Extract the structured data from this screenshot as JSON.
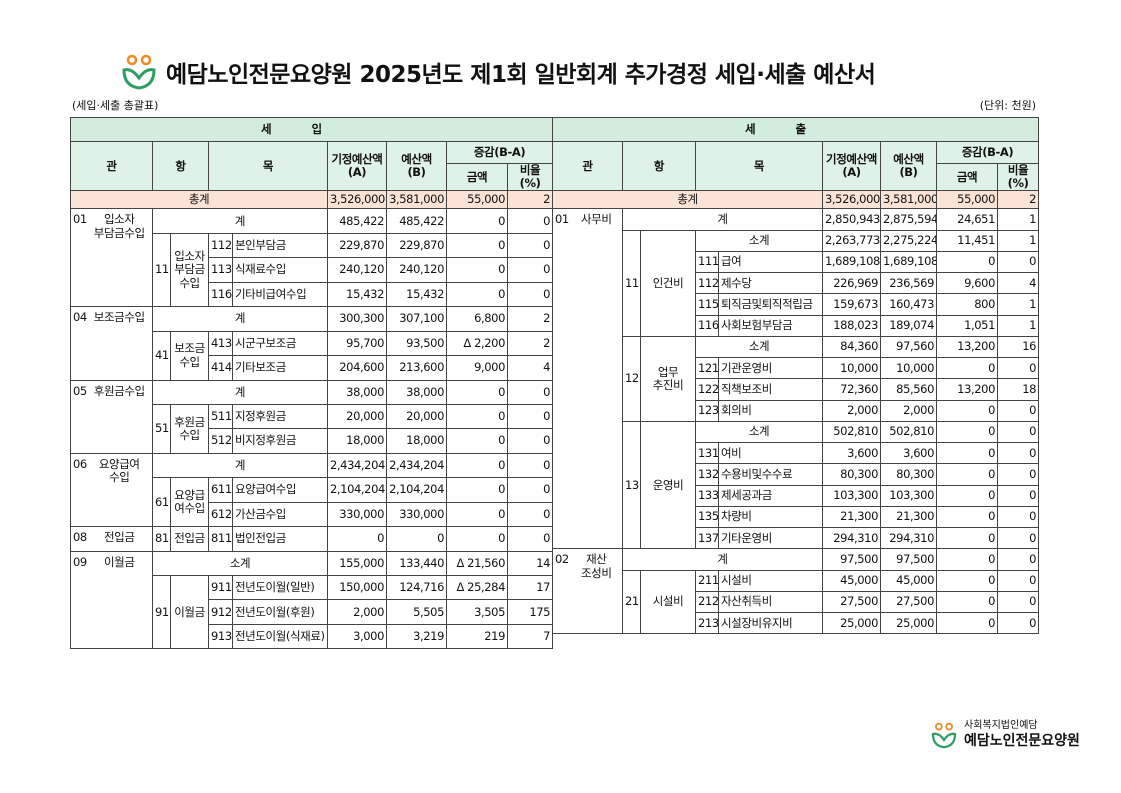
{
  "header": {
    "title": "예담노인전문요양원 2025년도 제1회 일반회계 추가경정 세입·세출 예산서",
    "subtitle": "(세입·세출 총괄표)",
    "unit": "(단위: 천원)"
  },
  "columns": {
    "gwan": "관",
    "hang": "항",
    "mok": "목",
    "budget_a": "기정예산액\n(A)",
    "budget_b": "예산액\n(B)",
    "diff": "증감(B-A)",
    "amount": "금액",
    "rate": "비율(%)"
  },
  "income": {
    "title": "세입",
    "total": {
      "label": "총계",
      "values": [
        "3,526,000",
        "3,581,000",
        "55,000",
        "2"
      ]
    },
    "groups": [
      {
        "code": "01",
        "name": "입소자\n부담금수입",
        "total": {
          "label": "계",
          "values": [
            "485,422",
            "485,422",
            "0",
            "0"
          ]
        },
        "subs": [
          {
            "code": "11",
            "name": "입소자\n부담금\n수입",
            "items": [
              {
                "code": "112",
                "name": "본인부담금",
                "values": [
                  "229,870",
                  "229,870",
                  "0",
                  "0"
                ]
              },
              {
                "code": "113",
                "name": "식재료수입",
                "values": [
                  "240,120",
                  "240,120",
                  "0",
                  "0"
                ]
              },
              {
                "code": "116",
                "name": "기타비급여수입",
                "values": [
                  "15,432",
                  "15,432",
                  "0",
                  "0"
                ]
              }
            ]
          }
        ]
      },
      {
        "code": "04",
        "name": "보조금수입",
        "total": {
          "label": "계",
          "values": [
            "300,300",
            "307,100",
            "6,800",
            "2"
          ]
        },
        "subs": [
          {
            "code": "41",
            "name": "보조금\n수입",
            "items": [
              {
                "code": "413",
                "name": "시군구보조금",
                "values": [
                  "95,700",
                  "93,500",
                  "Δ 2,200",
                  "2"
                ]
              },
              {
                "code": "414",
                "name": "기타보조금",
                "values": [
                  "204,600",
                  "213,600",
                  "9,000",
                  "4"
                ]
              }
            ]
          }
        ]
      },
      {
        "code": "05",
        "name": "후원금수입",
        "total": {
          "label": "계",
          "values": [
            "38,000",
            "38,000",
            "0",
            "0"
          ]
        },
        "subs": [
          {
            "code": "51",
            "name": "후원금\n수입",
            "items": [
              {
                "code": "511",
                "name": "지정후원금",
                "values": [
                  "20,000",
                  "20,000",
                  "0",
                  "0"
                ]
              },
              {
                "code": "512",
                "name": "비지정후원금",
                "values": [
                  "18,000",
                  "18,000",
                  "0",
                  "0"
                ]
              }
            ]
          }
        ]
      },
      {
        "code": "06",
        "name": "요양급여\n수입",
        "total": {
          "label": "계",
          "values": [
            "2,434,204",
            "2,434,204",
            "0",
            "0"
          ]
        },
        "subs": [
          {
            "code": "61",
            "name": "요양급\n여수입",
            "items": [
              {
                "code": "611",
                "name": "요양급여수입",
                "values": [
                  "2,104,204",
                  "2,104,204",
                  "0",
                  "0"
                ]
              },
              {
                "code": "612",
                "name": "가산금수입",
                "values": [
                  "330,000",
                  "330,000",
                  "0",
                  "0"
                ]
              }
            ]
          }
        ]
      },
      {
        "code": "08",
        "name": "전입금",
        "subs": [
          {
            "code": "81",
            "name": "전입금",
            "items": [
              {
                "code": "811",
                "name": "법인전입금",
                "values": [
                  "0",
                  "0",
                  "0",
                  "0"
                ]
              }
            ]
          }
        ]
      },
      {
        "code": "09",
        "name": "이월금",
        "total": {
          "label": "소계",
          "values": [
            "155,000",
            "133,440",
            "Δ 21,560",
            "14"
          ]
        },
        "subs": [
          {
            "code": "91",
            "name": "이월금",
            "items": [
              {
                "code": "911",
                "name": "전년도이월(일반)",
                "values": [
                  "150,000",
                  "124,716",
                  "Δ 25,284",
                  "17"
                ]
              },
              {
                "code": "912",
                "name": "전년도이월(후원)",
                "values": [
                  "2,000",
                  "5,505",
                  "3,505",
                  "175"
                ]
              },
              {
                "code": "913",
                "name": "전년도이월(식재료)",
                "values": [
                  "3,000",
                  "3,219",
                  "219",
                  "7"
                ]
              }
            ]
          }
        ]
      }
    ]
  },
  "expense": {
    "title": "세출",
    "total": {
      "label": "총계",
      "values": [
        "3,526,000",
        "3,581,000",
        "55,000",
        "2"
      ]
    },
    "groups": [
      {
        "code": "01",
        "name": "사무비",
        "total": {
          "label": "계",
          "values": [
            "2,850,943",
            "2,875,594",
            "24,651",
            "1"
          ]
        },
        "subs": [
          {
            "code": "11",
            "name": "인건비",
            "total": {
              "label": "소계",
              "values": [
                "2,263,773",
                "2,275,224",
                "11,451",
                "1"
              ]
            },
            "items": [
              {
                "code": "111",
                "name": "급여",
                "values": [
                  "1,689,108",
                  "1,689,108",
                  "0",
                  "0"
                ]
              },
              {
                "code": "112",
                "name": "제수당",
                "values": [
                  "226,969",
                  "236,569",
                  "9,600",
                  "4"
                ]
              },
              {
                "code": "115",
                "name": "퇴직금및퇴직적립금",
                "values": [
                  "159,673",
                  "160,473",
                  "800",
                  "1"
                ]
              },
              {
                "code": "116",
                "name": "사회보험부담금",
                "values": [
                  "188,023",
                  "189,074",
                  "1,051",
                  "1"
                ]
              }
            ]
          },
          {
            "code": "12",
            "name": "업무\n추진비",
            "total": {
              "label": "소계",
              "values": [
                "84,360",
                "97,560",
                "13,200",
                "16"
              ]
            },
            "items": [
              {
                "code": "121",
                "name": "기관운영비",
                "values": [
                  "10,000",
                  "10,000",
                  "0",
                  "0"
                ]
              },
              {
                "code": "122",
                "name": "직책보조비",
                "values": [
                  "72,360",
                  "85,560",
                  "13,200",
                  "18"
                ]
              },
              {
                "code": "123",
                "name": "회의비",
                "values": [
                  "2,000",
                  "2,000",
                  "0",
                  "0"
                ]
              }
            ]
          },
          {
            "code": "13",
            "name": "운영비",
            "total": {
              "label": "소계",
              "values": [
                "502,810",
                "502,810",
                "0",
                "0"
              ]
            },
            "items": [
              {
                "code": "131",
                "name": "여비",
                "values": [
                  "3,600",
                  "3,600",
                  "0",
                  "0"
                ]
              },
              {
                "code": "132",
                "name": "수용비및수수료",
                "values": [
                  "80,300",
                  "80,300",
                  "0",
                  "0"
                ]
              },
              {
                "code": "133",
                "name": "제세공과금",
                "values": [
                  "103,300",
                  "103,300",
                  "0",
                  "0"
                ]
              },
              {
                "code": "135",
                "name": "차량비",
                "values": [
                  "21,300",
                  "21,300",
                  "0",
                  "0"
                ]
              },
              {
                "code": "137",
                "name": "기타운영비",
                "values": [
                  "294,310",
                  "294,310",
                  "0",
                  "0"
                ]
              }
            ]
          }
        ]
      },
      {
        "code": "02",
        "name": "재산\n조성비",
        "total": {
          "label": "계",
          "values": [
            "97,500",
            "97,500",
            "0",
            "0"
          ]
        },
        "subs": [
          {
            "code": "21",
            "name": "시설비",
            "items": [
              {
                "code": "211",
                "name": "시설비",
                "values": [
                  "45,000",
                  "45,000",
                  "0",
                  "0"
                ]
              },
              {
                "code": "212",
                "name": "자산취득비",
                "values": [
                  "27,500",
                  "27,500",
                  "0",
                  "0"
                ]
              },
              {
                "code": "213",
                "name": "시설장비유지비",
                "values": [
                  "25,000",
                  "25,000",
                  "0",
                  "0"
                ]
              }
            ]
          }
        ]
      }
    ]
  },
  "footer": {
    "org": "사회복지법인예담",
    "name": "예담노인전문요양원"
  }
}
